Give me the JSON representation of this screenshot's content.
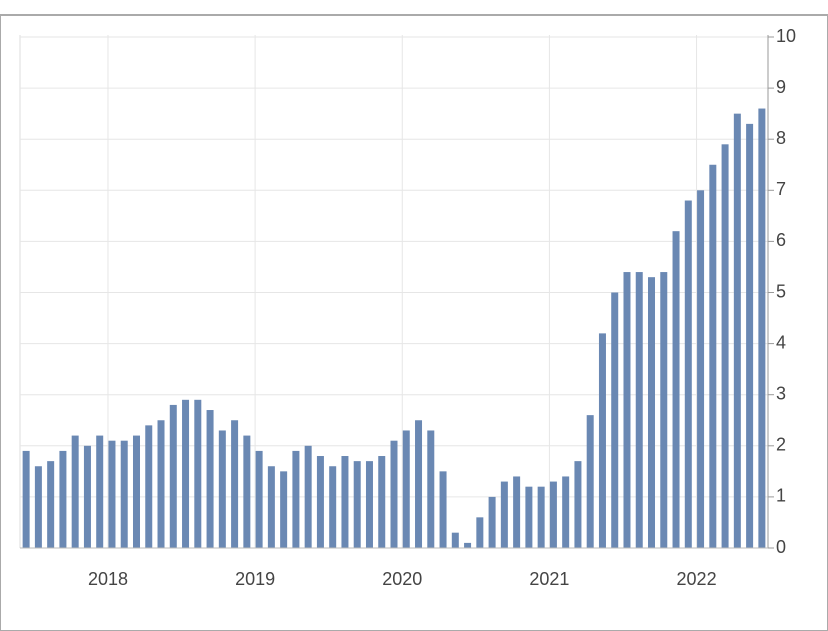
{
  "chart_data": {
    "type": "bar",
    "categories": [
      null,
      null,
      null,
      null,
      null,
      null,
      null,
      "2018",
      null,
      null,
      null,
      null,
      null,
      null,
      null,
      null,
      null,
      null,
      null,
      "2019",
      null,
      null,
      null,
      null,
      null,
      null,
      null,
      null,
      null,
      null,
      null,
      "2020",
      null,
      null,
      null,
      null,
      null,
      null,
      null,
      null,
      null,
      null,
      null,
      "2021",
      null,
      null,
      null,
      null,
      null,
      null,
      null,
      null,
      null,
      null,
      null,
      "2022",
      null,
      null,
      null,
      null,
      null
    ],
    "values": [
      1.9,
      1.6,
      1.7,
      1.9,
      2.2,
      2.0,
      2.2,
      2.1,
      2.1,
      2.2,
      2.4,
      2.5,
      2.8,
      2.9,
      2.9,
      2.7,
      2.3,
      2.5,
      2.2,
      1.9,
      1.6,
      1.5,
      1.9,
      2.0,
      1.8,
      1.6,
      1.8,
      1.7,
      1.7,
      1.8,
      2.1,
      2.3,
      2.5,
      2.3,
      1.5,
      0.3,
      0.1,
      0.6,
      1.0,
      1.3,
      1.4,
      1.2,
      1.2,
      1.3,
      1.4,
      1.7,
      2.6,
      4.2,
      5.0,
      5.4,
      5.4,
      5.3,
      5.4,
      6.2,
      6.8,
      7.0,
      7.5,
      7.9,
      8.5,
      8.3,
      8.6
    ],
    "color": "#6a88b3",
    "ylim": [
      0,
      10
    ],
    "yticks": [
      0,
      1,
      2,
      3,
      4,
      5,
      6,
      7,
      8,
      9,
      10
    ],
    "grid": true
  }
}
